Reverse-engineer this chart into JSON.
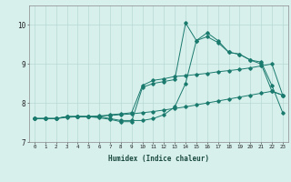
{
  "xlabel": "Humidex (Indice chaleur)",
  "bg_color": "#d8f0ec",
  "grid_color": "#b8d8d4",
  "line_color": "#1a7a6e",
  "xlim": [
    -0.5,
    23.5
  ],
  "ylim": [
    7.0,
    10.5
  ],
  "yticks": [
    7,
    8,
    9,
    10
  ],
  "xticks": [
    0,
    1,
    2,
    3,
    4,
    5,
    6,
    7,
    8,
    9,
    10,
    11,
    12,
    13,
    14,
    15,
    16,
    17,
    18,
    19,
    20,
    21,
    22,
    23
  ],
  "lines": [
    {
      "x": [
        0,
        1,
        2,
        3,
        4,
        5,
        6,
        7,
        8,
        9,
        10,
        11,
        12,
        13,
        14,
        15,
        16,
        17,
        18,
        19,
        20,
        21,
        22,
        23
      ],
      "y": [
        7.6,
        7.6,
        7.6,
        7.65,
        7.65,
        7.65,
        7.62,
        7.58,
        7.52,
        7.52,
        8.4,
        8.5,
        8.55,
        8.6,
        10.05,
        9.6,
        9.8,
        9.6,
        9.3,
        9.25,
        9.1,
        9.05,
        8.45,
        7.75
      ]
    },
    {
      "x": [
        0,
        1,
        2,
        3,
        4,
        5,
        6,
        7,
        8,
        9,
        10,
        11,
        12,
        13,
        14,
        15,
        16,
        17,
        18,
        19,
        20,
        21,
        22,
        23
      ],
      "y": [
        7.6,
        7.6,
        7.6,
        7.65,
        7.65,
        7.65,
        7.65,
        7.6,
        7.55,
        7.55,
        7.55,
        7.6,
        7.7,
        7.9,
        8.5,
        9.6,
        9.7,
        9.55,
        9.3,
        9.25,
        9.1,
        9.0,
        8.3,
        8.2
      ]
    },
    {
      "x": [
        0,
        1,
        2,
        3,
        4,
        5,
        6,
        7,
        8,
        9,
        10,
        11,
        12,
        13,
        14,
        15,
        16,
        17,
        18,
        19,
        20,
        21,
        22,
        23
      ],
      "y": [
        7.6,
        7.6,
        7.6,
        7.65,
        7.65,
        7.65,
        7.65,
        7.7,
        7.72,
        7.75,
        8.45,
        8.58,
        8.62,
        8.68,
        8.7,
        8.73,
        8.76,
        8.8,
        8.83,
        8.86,
        8.9,
        8.95,
        9.0,
        8.2
      ]
    },
    {
      "x": [
        0,
        1,
        2,
        3,
        4,
        5,
        6,
        7,
        8,
        9,
        10,
        11,
        12,
        13,
        14,
        15,
        16,
        17,
        18,
        19,
        20,
        21,
        22,
        23
      ],
      "y": [
        7.6,
        7.6,
        7.6,
        7.63,
        7.65,
        7.65,
        7.67,
        7.68,
        7.7,
        7.72,
        7.75,
        7.78,
        7.82,
        7.86,
        7.9,
        7.95,
        8.0,
        8.05,
        8.1,
        8.15,
        8.2,
        8.25,
        8.3,
        8.2
      ]
    }
  ]
}
